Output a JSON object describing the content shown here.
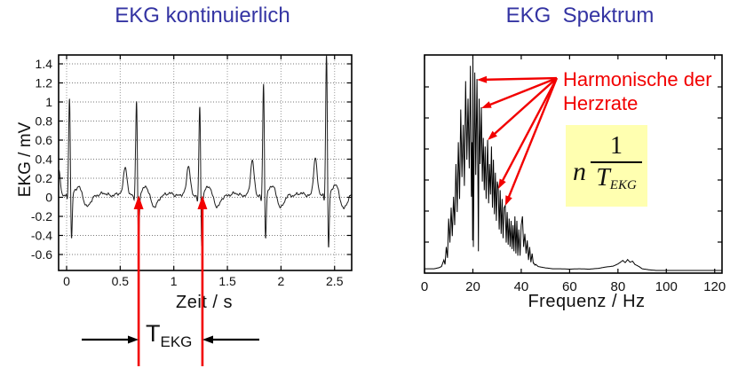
{
  "page": {
    "background": "#ffffff"
  },
  "colors": {
    "title": "#3434A3",
    "red": "#F20000",
    "formula_bg": "#FFFFB0",
    "axis": "#000000",
    "grid_v": "#9a9a9a",
    "grid_h": "#7a7a7a",
    "trace": "#1c1c1c"
  },
  "chart_data": [
    {
      "id": "ekg-time",
      "type": "line",
      "title": "EKG kontinuierlich",
      "xlabel": "Zeit / s",
      "ylabel": "EKG / mV",
      "xlim": [
        -0.075,
        2.66
      ],
      "ylim": [
        -0.767,
        1.493
      ],
      "grid": true,
      "xticks": [
        0,
        0.5,
        1,
        1.5,
        2,
        2.5
      ],
      "xtick_labels": [
        "0",
        "0.5",
        "1",
        "1.5",
        "2",
        "2.5"
      ],
      "yticks": [
        1.4,
        1.2,
        1,
        0.8,
        0.6,
        0.4,
        0.2,
        0,
        -0.2,
        -0.4,
        -0.6
      ],
      "ytick_labels": [
        "1.4",
        "1.2",
        "1",
        "0.8",
        "0.6",
        "0.4",
        "0.2",
        "0",
        "-0.2",
        "-0.4",
        "-0.6"
      ],
      "beats": [
        {
          "t": 0.0275,
          "r": 1.05,
          "s": -0.55,
          "pre": 0.28
        },
        {
          "t": 0.6525,
          "r": 1.0,
          "s": -0.58,
          "pre": 0.3
        },
        {
          "t": 1.2425,
          "r": 0.95,
          "s": -0.62,
          "pre": 0.3
        },
        {
          "t": 1.8375,
          "r": 1.2,
          "s": -0.55,
          "pre": 0.35
        },
        {
          "t": 2.425,
          "r": 1.55,
          "s": -0.65,
          "pre": 0.37
        }
      ],
      "marker_times": [
        0.672,
        1.267
      ],
      "interval_label": {
        "base": "T",
        "sub": "EKG"
      }
    },
    {
      "id": "ekg-spectrum",
      "type": "line",
      "title": "EKG  Spektrum",
      "xlabel": "Frequenz / Hz",
      "xlim": [
        0,
        123
      ],
      "ylim": [
        0,
        1
      ],
      "grid": false,
      "xticks": [
        0,
        20,
        40,
        60,
        80,
        100,
        120
      ],
      "xtick_labels": [
        "0",
        "20",
        "40",
        "60",
        "80",
        "100",
        "120"
      ],
      "envelope": [
        [
          0,
          0.02
        ],
        [
          4,
          0.02
        ],
        [
          6,
          0.025
        ],
        [
          7,
          0.03
        ],
        [
          8,
          0.06
        ],
        [
          8.5,
          0.04
        ],
        [
          9,
          0.12
        ],
        [
          9.5,
          0.07
        ],
        [
          10,
          0.25
        ],
        [
          10.5,
          0.14
        ],
        [
          11,
          0.3
        ],
        [
          11.5,
          0.17
        ],
        [
          12,
          0.35
        ],
        [
          12.5,
          0.22
        ],
        [
          13,
          0.5
        ],
        [
          13.5,
          0.28
        ],
        [
          14,
          0.6
        ],
        [
          14.5,
          0.34
        ],
        [
          15,
          0.75
        ],
        [
          15.5,
          0.44
        ],
        [
          16,
          0.68
        ],
        [
          16.5,
          0.4
        ],
        [
          17,
          0.88
        ],
        [
          17.5,
          0.52
        ],
        [
          18,
          0.8
        ],
        [
          18.5,
          0.48
        ],
        [
          19,
          0.95
        ],
        [
          19.4,
          0.35
        ],
        [
          19.7,
          0.6
        ],
        [
          19.9,
          0.15
        ],
        [
          20,
          1.0
        ],
        [
          20.2,
          0.12
        ],
        [
          20.5,
          0.5
        ],
        [
          20.8,
          0.92
        ],
        [
          21.2,
          0.45
        ],
        [
          21.7,
          0.89
        ],
        [
          22.1,
          0.4
        ],
        [
          22.3,
          0.1
        ],
        [
          22.6,
          0.8
        ],
        [
          23,
          0.5
        ],
        [
          23.5,
          0.76
        ],
        [
          23.9,
          0.42
        ],
        [
          24.3,
          0.62
        ],
        [
          24.7,
          0.38
        ],
        [
          25.1,
          0.58
        ],
        [
          25.5,
          0.34
        ],
        [
          25.9,
          0.52
        ],
        [
          26.1,
          0.61
        ],
        [
          26.5,
          0.32
        ],
        [
          26.9,
          0.5
        ],
        [
          27.3,
          0.36
        ],
        [
          27.7,
          0.58
        ],
        [
          28.1,
          0.3
        ],
        [
          28.5,
          0.52
        ],
        [
          28.9,
          0.27
        ],
        [
          29.3,
          0.46
        ],
        [
          29.7,
          0.24
        ],
        [
          30.1,
          0.42
        ],
        [
          30.5,
          0.39
        ],
        [
          30.9,
          0.2
        ],
        [
          31.3,
          0.38
        ],
        [
          31.7,
          0.18
        ],
        [
          32.1,
          0.34
        ],
        [
          32.5,
          0.16
        ],
        [
          32.9,
          0.3
        ],
        [
          33.4,
          0.31
        ],
        [
          33.8,
          0.14
        ],
        [
          34.2,
          0.28
        ],
        [
          34.6,
          0.13
        ],
        [
          35,
          0.25
        ],
        [
          35.4,
          0.12
        ],
        [
          35.8,
          0.24
        ],
        [
          36.2,
          0.11
        ],
        [
          36.6,
          0.22
        ],
        [
          37,
          0.1
        ],
        [
          37.4,
          0.26
        ],
        [
          37.8,
          0.09
        ],
        [
          38.2,
          0.24
        ],
        [
          38.6,
          0.08
        ],
        [
          39,
          0.2
        ],
        [
          39.5,
          0.08
        ],
        [
          40,
          0.22
        ],
        [
          40.5,
          0.26
        ],
        [
          41,
          0.12
        ],
        [
          41.5,
          0.18
        ],
        [
          42,
          0.09
        ],
        [
          42.5,
          0.15
        ],
        [
          43,
          0.06
        ],
        [
          43.5,
          0.12
        ],
        [
          44,
          0.05
        ],
        [
          44.5,
          0.09
        ],
        [
          45,
          0.045
        ],
        [
          46,
          0.04
        ],
        [
          47,
          0.03
        ],
        [
          48,
          0.028
        ],
        [
          50,
          0.024
        ],
        [
          53,
          0.02
        ],
        [
          56,
          0.02
        ],
        [
          60,
          0.018
        ],
        [
          64,
          0.02
        ],
        [
          68,
          0.018
        ],
        [
          72,
          0.022
        ],
        [
          75,
          0.028
        ],
        [
          78,
          0.032
        ],
        [
          80,
          0.042
        ],
        [
          81,
          0.05
        ],
        [
          82,
          0.058
        ],
        [
          83,
          0.048
        ],
        [
          84,
          0.062
        ],
        [
          85,
          0.05
        ],
        [
          86,
          0.055
        ],
        [
          87,
          0.04
        ],
        [
          88,
          0.034
        ],
        [
          89,
          0.028
        ],
        [
          90,
          0.02
        ],
        [
          93,
          0.015
        ],
        [
          96,
          0.012
        ],
        [
          100,
          0.012
        ],
        [
          105,
          0.012
        ],
        [
          110,
          0.012
        ],
        [
          115,
          0.012
        ],
        [
          120,
          0.012
        ],
        [
          123,
          0.012
        ]
      ],
      "annotations": {
        "harmonics_line1": "Harmonische der",
        "harmonics_line2": "Herzrate"
      },
      "formula": {
        "factor": "n",
        "numerator": "1",
        "denominator_base": "T",
        "denominator_sub": "EKG"
      },
      "arrows": {
        "origin": {
          "f": 54.7,
          "a": 0.894
        },
        "targets": [
          {
            "f": 21.7,
            "a": 0.886
          },
          {
            "f": 23.5,
            "a": 0.756
          },
          {
            "f": 26.1,
            "a": 0.61
          },
          {
            "f": 30.5,
            "a": 0.386
          },
          {
            "f": 33.4,
            "a": 0.309
          }
        ]
      }
    }
  ]
}
